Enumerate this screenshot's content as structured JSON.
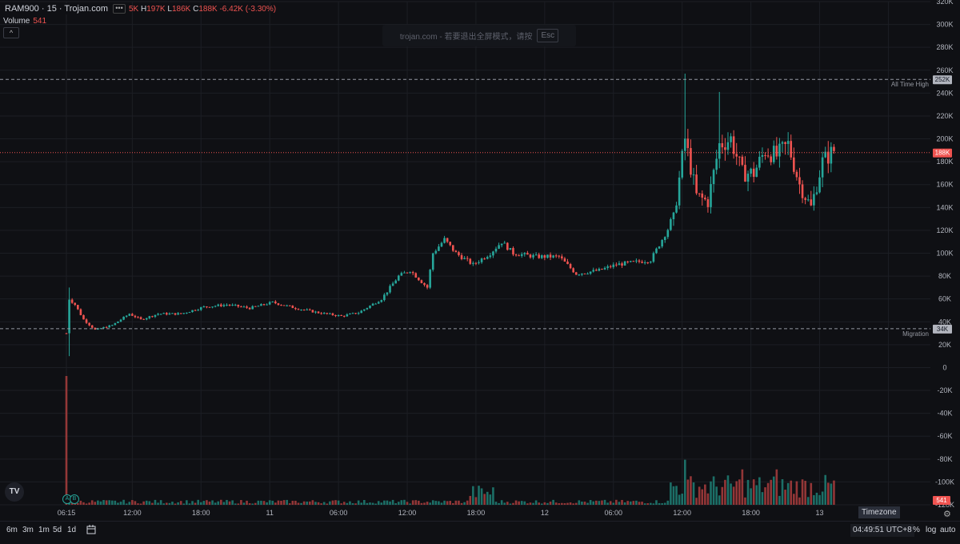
{
  "legend": {
    "symbol": "RAM900 · 15 · Trojan.com",
    "more_icon": "•••",
    "open_prefix": "5K",
    "high_label": "H",
    "high": "197K",
    "low_label": "L",
    "low": "186K",
    "close_label": "C",
    "close": "188K",
    "change": "-6.42K (-3.30%)",
    "volume_label": "Volume",
    "volume_value": "541",
    "collapse_icon": "^"
  },
  "toast": {
    "text": "trojan.com - 若要退出全屏模式，请按",
    "key": "Esc"
  },
  "y_axis": {
    "min": -120000,
    "max": 320000,
    "ticks": [
      {
        "label": "320K",
        "value": 320000
      },
      {
        "label": "300K",
        "value": 300000
      },
      {
        "label": "280K",
        "value": 280000
      },
      {
        "label": "260K",
        "value": 260000
      },
      {
        "label": "240K",
        "value": 240000
      },
      {
        "label": "220K",
        "value": 220000
      },
      {
        "label": "200K",
        "value": 200000
      },
      {
        "label": "180K",
        "value": 180000
      },
      {
        "label": "160K",
        "value": 160000
      },
      {
        "label": "140K",
        "value": 140000
      },
      {
        "label": "120K",
        "value": 120000
      },
      {
        "label": "100K",
        "value": 100000
      },
      {
        "label": "80K",
        "value": 80000
      },
      {
        "label": "60K",
        "value": 60000
      },
      {
        "label": "40K",
        "value": 40000
      },
      {
        "label": "20K",
        "value": 20000
      },
      {
        "label": "0",
        "value": 0
      },
      {
        "label": "-20K",
        "value": -20000
      },
      {
        "label": "-40K",
        "value": -40000
      },
      {
        "label": "-60K",
        "value": -60000
      },
      {
        "label": "-80K",
        "value": -80000
      },
      {
        "label": "-100K",
        "value": -100000
      },
      {
        "label": "-120K",
        "value": -120000
      }
    ]
  },
  "x_axis": {
    "ticks": [
      {
        "label": "06:15",
        "i": 0
      },
      {
        "label": "12:00",
        "i": 23
      },
      {
        "label": "18:00",
        "i": 47
      },
      {
        "label": "11",
        "i": 71
      },
      {
        "label": "06:00",
        "i": 95
      },
      {
        "label": "12:00",
        "i": 119
      },
      {
        "label": "18:00",
        "i": 143
      },
      {
        "label": "12",
        "i": 167
      },
      {
        "label": "06:00",
        "i": 191
      },
      {
        "label": "12:00",
        "i": 215
      },
      {
        "label": "18:00",
        "i": 239
      },
      {
        "label": "13",
        "i": 263
      },
      {
        "label": "06:00",
        "i": 287
      }
    ]
  },
  "price_lines": [
    {
      "label": "All Time High",
      "value": 252000,
      "badge": "252K",
      "color": "#9598a1"
    },
    {
      "label": "Migration",
      "value": 34000,
      "badge": "34K",
      "color": "#9598a1"
    },
    {
      "label": "",
      "value": 188000,
      "badge": "188K",
      "color": "#ef5350"
    }
  ],
  "volume_badge": "541",
  "markers": [
    "A",
    "B"
  ],
  "timeframes": [
    "6m",
    "3m",
    "1m",
    "5d",
    "1d"
  ],
  "bottom": {
    "calendar_icon": "calendar-range-icon",
    "clock": "04:49:51 UTC+8",
    "percent": "%",
    "log": "log",
    "auto": "auto",
    "timezone": "Timezone",
    "gear_icon": "⚙"
  },
  "colors": {
    "up": "#26a69a",
    "down": "#ef5350",
    "bg": "#0f1014",
    "grid": "#1c1e24"
  },
  "chart_data": {
    "type": "candlestick",
    "interval": "15",
    "keyframes": [
      [
        0,
        30000
      ],
      [
        1,
        60000
      ],
      [
        3,
        55000
      ],
      [
        6,
        42000
      ],
      [
        10,
        33000
      ],
      [
        16,
        37000
      ],
      [
        22,
        47000
      ],
      [
        26,
        42000
      ],
      [
        32,
        47000
      ],
      [
        40,
        47000
      ],
      [
        48,
        53000
      ],
      [
        56,
        55000
      ],
      [
        64,
        52000
      ],
      [
        72,
        57000
      ],
      [
        80,
        52000
      ],
      [
        88,
        48000
      ],
      [
        96,
        45000
      ],
      [
        102,
        48000
      ],
      [
        110,
        60000
      ],
      [
        116,
        80000
      ],
      [
        120,
        85000
      ],
      [
        126,
        70000
      ],
      [
        128,
        100000
      ],
      [
        132,
        112000
      ],
      [
        136,
        100000
      ],
      [
        142,
        90000
      ],
      [
        148,
        100000
      ],
      [
        152,
        110000
      ],
      [
        156,
        100000
      ],
      [
        164,
        97000
      ],
      [
        172,
        97000
      ],
      [
        178,
        82000
      ],
      [
        186,
        85000
      ],
      [
        192,
        90000
      ],
      [
        204,
        94000
      ],
      [
        212,
        130000
      ],
      [
        216,
        200000
      ],
      [
        220,
        150000
      ],
      [
        224,
        145000
      ],
      [
        228,
        195000
      ],
      [
        232,
        200000
      ],
      [
        236,
        170000
      ],
      [
        240,
        170000
      ],
      [
        244,
        190000
      ],
      [
        248,
        185000
      ],
      [
        252,
        195000
      ],
      [
        256,
        160000
      ],
      [
        260,
        140000
      ],
      [
        264,
        180000
      ],
      [
        268,
        190000
      ]
    ],
    "extremes": [
      {
        "i": 216,
        "high": 257000
      },
      {
        "i": 228,
        "high": 241000
      },
      {
        "i": 1,
        "high": 70000
      },
      {
        "i": 1,
        "low": 10000
      }
    ],
    "volume": {
      "max": 200000,
      "spikes": [
        {
          "i": 0,
          "value": 200000
        },
        {
          "i": 216,
          "value": 70000
        },
        {
          "i": 236,
          "value": 55000
        },
        {
          "i": 248,
          "value": 55000
        }
      ]
    }
  }
}
